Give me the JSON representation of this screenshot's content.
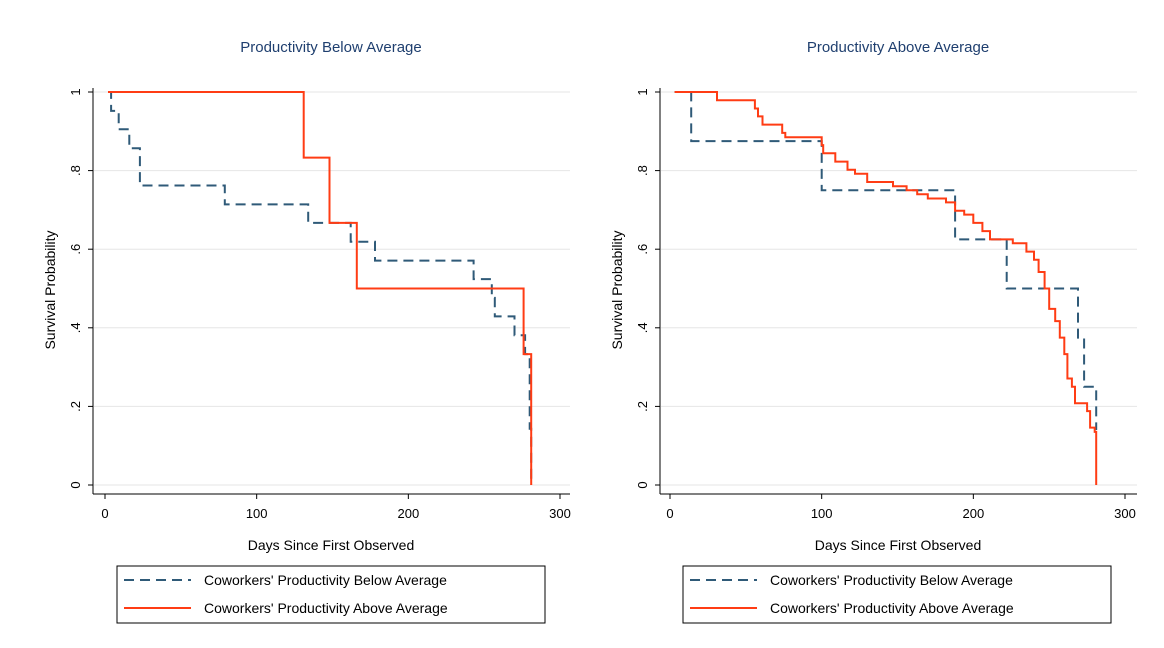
{
  "colors": {
    "title": "#1f3f6f",
    "below": "#2f5a78",
    "above": "#ff3c14",
    "axis": "#000000",
    "grid": "#e6e6e6",
    "text": "#000000"
  },
  "chart_data": [
    {
      "type": "line",
      "title": "Productivity Below Average",
      "xlabel": "Days Since First Observed",
      "ylabel": "Survival Probability",
      "xlim": [
        -8,
        300
      ],
      "ylim": [
        0,
        1
      ],
      "xticks": [
        0,
        100,
        200,
        300
      ],
      "xtick_labels": [
        "0",
        "100",
        "200",
        "300"
      ],
      "yticks": [
        0,
        0.2,
        0.4,
        0.6,
        0.8,
        1
      ],
      "ytick_labels": [
        "0",
        ".2",
        ".4",
        ".6",
        ".8",
        "1"
      ],
      "grid": true,
      "legend_position": "bottom",
      "series": [
        {
          "name": "Coworkers' Productivity Below Average",
          "style": "dashed",
          "color_key": "below",
          "steps": [
            [
              2,
              1
            ],
            [
              4,
              0.952
            ],
            [
              9,
              0.905
            ],
            [
              16,
              0.857
            ],
            [
              23,
              0.762
            ],
            [
              79,
              0.714
            ],
            [
              134,
              0.667
            ],
            [
              162,
              0.619
            ],
            [
              178,
              0.571
            ],
            [
              243,
              0.524
            ],
            [
              255,
              0.476
            ],
            [
              257,
              0.429
            ],
            [
              270,
              0.381
            ],
            [
              277,
              0.333
            ],
            [
              280,
              0.143
            ],
            [
              281,
              0
            ]
          ]
        },
        {
          "name": "Coworkers' Productivity Above Average",
          "style": "solid",
          "color_key": "above",
          "steps": [
            [
              2,
              1
            ],
            [
              131,
              0.833
            ],
            [
              148,
              0.667
            ],
            [
              166,
              0.5
            ],
            [
              276,
              0.333
            ],
            [
              281,
              0
            ]
          ]
        }
      ]
    },
    {
      "type": "line",
      "title": "Productivity Above Average",
      "xlabel": "Days Since First Observed",
      "ylabel": "Survival Probability",
      "xlim": [
        -8,
        300
      ],
      "ylim": [
        0,
        1
      ],
      "xticks": [
        0,
        100,
        200,
        300
      ],
      "xtick_labels": [
        "0",
        "100",
        "200",
        "300"
      ],
      "yticks": [
        0,
        0.2,
        0.4,
        0.6,
        0.8,
        1
      ],
      "ytick_labels": [
        "0",
        ".2",
        ".4",
        ".6",
        ".8",
        "1"
      ],
      "grid": true,
      "legend_position": "bottom",
      "series": [
        {
          "name": "Coworkers' Productivity Below Average",
          "style": "dashed",
          "color_key": "below",
          "steps": [
            [
              3,
              1
            ],
            [
              14,
              0.875
            ],
            [
              100,
              0.75
            ],
            [
              188,
              0.625
            ],
            [
              222,
              0.5
            ],
            [
              269,
              0.375
            ],
            [
              273,
              0.25
            ],
            [
              281,
              0.14
            ]
          ]
        },
        {
          "name": "Coworkers' Productivity Above Average",
          "style": "solid",
          "color_key": "above",
          "steps": [
            [
              3,
              1
            ],
            [
              31,
              0.979
            ],
            [
              56,
              0.958
            ],
            [
              58,
              0.938
            ],
            [
              61,
              0.917
            ],
            [
              74,
              0.896
            ],
            [
              76,
              0.885
            ],
            [
              100,
              0.865
            ],
            [
              101,
              0.844
            ],
            [
              109,
              0.823
            ],
            [
              117,
              0.802
            ],
            [
              122,
              0.792
            ],
            [
              130,
              0.771
            ],
            [
              147,
              0.76
            ],
            [
              156,
              0.75
            ],
            [
              163,
              0.74
            ],
            [
              170,
              0.729
            ],
            [
              182,
              0.719
            ],
            [
              188,
              0.698
            ],
            [
              194,
              0.688
            ],
            [
              200,
              0.667
            ],
            [
              206,
              0.646
            ],
            [
              211,
              0.625
            ],
            [
              226,
              0.615
            ],
            [
              235,
              0.594
            ],
            [
              240,
              0.573
            ],
            [
              243,
              0.542
            ],
            [
              247,
              0.5
            ],
            [
              250,
              0.448
            ],
            [
              254,
              0.417
            ],
            [
              257,
              0.375
            ],
            [
              260,
              0.333
            ],
            [
              262,
              0.271
            ],
            [
              265,
              0.25
            ],
            [
              267,
              0.208
            ],
            [
              275,
              0.188
            ],
            [
              277,
              0.146
            ],
            [
              280,
              0.135
            ],
            [
              281,
              0
            ]
          ]
        }
      ]
    }
  ]
}
